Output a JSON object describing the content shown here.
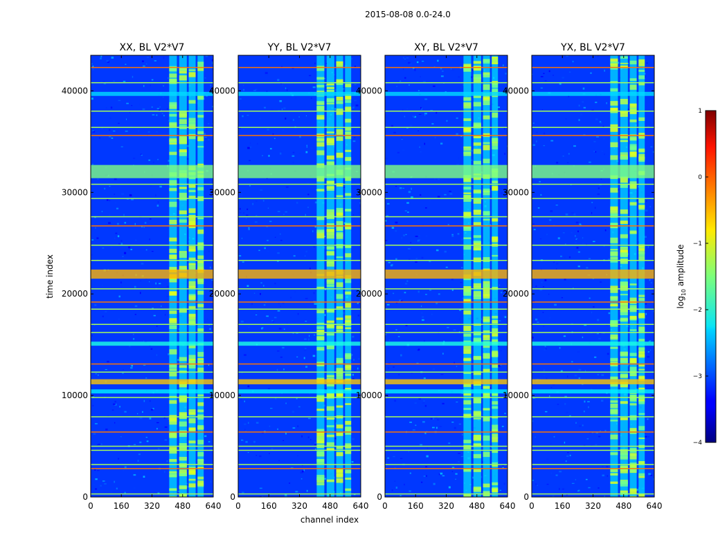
{
  "chart_data": {
    "type": "heatmap",
    "title": "2015-08-08 0.0-24.0",
    "xlabel": "channel index",
    "ylabel": "time index",
    "xlim": [
      0,
      640
    ],
    "ylim": [
      0,
      43500
    ],
    "x_ticks": [
      0,
      160,
      320,
      480,
      640
    ],
    "y_ticks": [
      0,
      10000,
      20000,
      30000,
      40000
    ],
    "panels": [
      {
        "title": "XX, BL V2*V7"
      },
      {
        "title": "YY, BL V2*V7"
      },
      {
        "title": "XY, BL V2*V7"
      },
      {
        "title": "YX, BL V2*V7"
      }
    ],
    "colorbar": {
      "label": "log10 amplitude",
      "label_base": "log",
      "label_sub": "10",
      "label_rest": " amplitude",
      "range": [
        -4,
        1
      ],
      "ticks": [
        1,
        0,
        -1,
        -2,
        -3,
        -4
      ],
      "tick_labels": [
        "1",
        "0",
        "−1",
        "−2",
        "−3",
        "−4"
      ],
      "colormap": "jet"
    },
    "rfi_channel_bands": [
      [
        410,
        450
      ],
      [
        462,
        502
      ],
      [
        512,
        548
      ],
      [
        558,
        590
      ]
    ],
    "bright_time_bands": [
      [
        31400,
        32700,
        -1.5
      ],
      [
        21500,
        22400,
        -0.5
      ],
      [
        14900,
        15300,
        -2.0
      ],
      [
        11100,
        11600,
        -0.6
      ],
      [
        10200,
        10600,
        -2.2
      ],
      [
        39500,
        39900,
        -2.3
      ]
    ],
    "flag_lines_time": [
      300,
      2800,
      3200,
      4600,
      5000,
      6400,
      7900,
      9800,
      12300,
      13100,
      16200,
      17000,
      18500,
      19200,
      20500,
      23300,
      24800,
      26700,
      27600,
      29400,
      30800,
      35600,
      36400,
      38000,
      40800,
      42300
    ]
  }
}
